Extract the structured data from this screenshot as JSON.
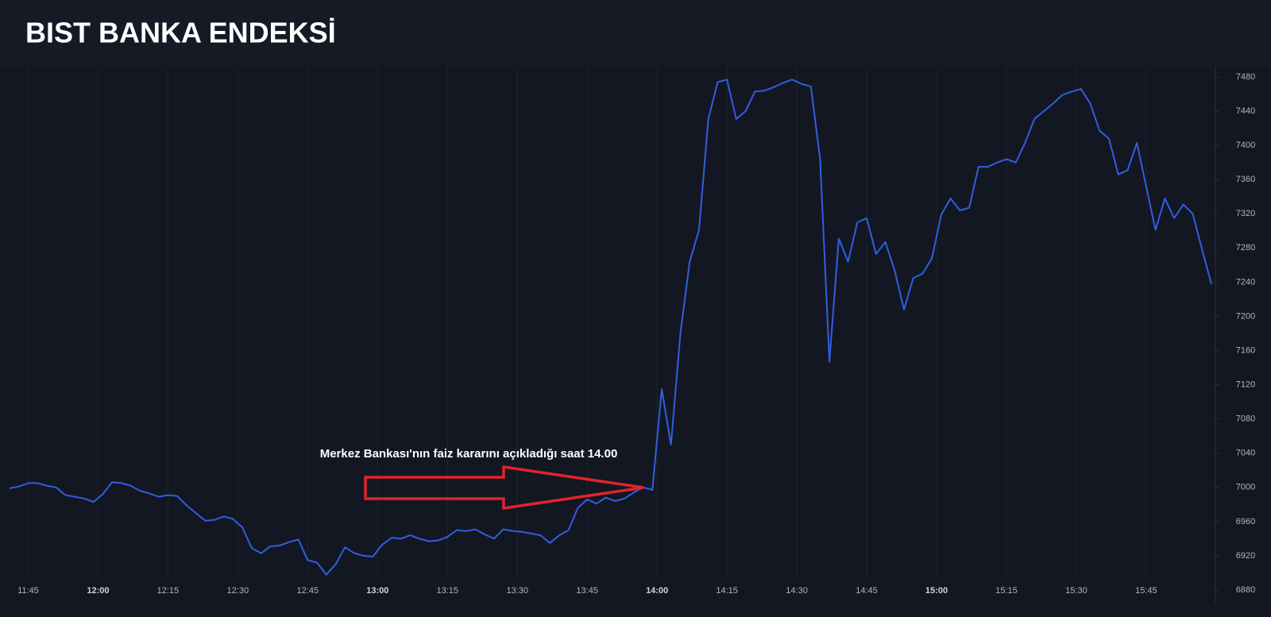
{
  "chart_data": {
    "type": "line",
    "title": "BIST BANKA ENDEKSİ",
    "annotation": "Merkez Bankası'nın faiz kararını açıkladığı saat 14.00",
    "x": [
      "11:41",
      "11:43",
      "11:45",
      "11:47",
      "11:49",
      "11:51",
      "11:53",
      "11:55",
      "11:57",
      "11:59",
      "12:01",
      "12:03",
      "12:05",
      "12:07",
      "12:09",
      "12:11",
      "12:13",
      "12:15",
      "12:17",
      "12:19",
      "12:21",
      "12:23",
      "12:25",
      "12:27",
      "12:29",
      "12:31",
      "12:33",
      "12:35",
      "12:37",
      "12:39",
      "12:41",
      "12:43",
      "12:45",
      "12:47",
      "12:49",
      "12:51",
      "12:53",
      "12:55",
      "12:57",
      "12:59",
      "13:01",
      "13:03",
      "13:05",
      "13:07",
      "13:09",
      "13:11",
      "13:13",
      "13:15",
      "13:17",
      "13:19",
      "13:21",
      "13:23",
      "13:25",
      "13:27",
      "13:29",
      "13:31",
      "13:33",
      "13:35",
      "13:37",
      "13:39",
      "13:41",
      "13:43",
      "13:45",
      "13:47",
      "13:49",
      "13:51",
      "13:53",
      "13:55",
      "13:57",
      "13:59",
      "14:01",
      "14:03",
      "14:05",
      "14:07",
      "14:09",
      "14:11",
      "14:13",
      "14:15",
      "14:17",
      "14:19",
      "14:21",
      "14:23",
      "14:25",
      "14:27",
      "14:29",
      "14:31",
      "14:33",
      "14:35",
      "14:37",
      "14:39",
      "14:41",
      "14:43",
      "14:45",
      "14:47",
      "14:49",
      "14:51",
      "14:53",
      "14:55",
      "14:57",
      "14:59",
      "15:01",
      "15:03",
      "15:05",
      "15:07",
      "15:09",
      "15:11",
      "15:13",
      "15:15",
      "15:17",
      "15:19",
      "15:21",
      "15:23",
      "15:25",
      "15:27",
      "15:29",
      "15:31",
      "15:33",
      "15:35",
      "15:37",
      "15:39",
      "15:41",
      "15:43",
      "15:45",
      "15:47",
      "15:49",
      "15:51",
      "15:53",
      "15:55",
      "15:57",
      "15:59"
    ],
    "series": [
      {
        "color": "#2f5fe0",
        "values": [
          6999,
          7001,
          7005,
          7005,
          7002,
          7000,
          6991,
          6989,
          6987,
          6983,
          6992,
          7006,
          7005,
          7002,
          6996,
          6993,
          6989,
          6991,
          6990,
          6979,
          6970,
          6961,
          6962,
          6966,
          6963,
          6953,
          6929,
          6923,
          6931,
          6932,
          6936,
          6939,
          6915,
          6912,
          6898,
          6910,
          6930,
          6923,
          6920,
          6919,
          6933,
          6941,
          6940,
          6944,
          6940,
          6937,
          6938,
          6942,
          6950,
          6949,
          6951,
          6945,
          6940,
          6951,
          6949,
          6948,
          6946,
          6944,
          6935,
          6944,
          6950,
          6976,
          6986,
          6981,
          6988,
          6984,
          6987,
          6994,
          7000,
          6997,
          7115,
          7050,
          7180,
          7264,
          7301,
          7431,
          7474,
          7477,
          7431,
          7440,
          7463,
          7464,
          7468,
          7473,
          7477,
          7472,
          7469,
          7384,
          7147,
          7291,
          7264,
          7310,
          7315,
          7273,
          7287,
          7254,
          7208,
          7245,
          7250,
          7268,
          7319,
          7338,
          7324,
          7327,
          7375,
          7375,
          7380,
          7384,
          7380,
          7403,
          7431,
          7440,
          7449,
          7459,
          7463,
          7466,
          7449,
          7417,
          7408,
          7366,
          7371,
          7403,
          7352,
          7301,
          7338,
          7315,
          7331,
          7320,
          7278,
          7238
        ]
      }
    ],
    "xlim": [
      "11:41",
      "15:59"
    ],
    "xticks": [
      "11:45",
      "12:00",
      "12:15",
      "12:30",
      "12:45",
      "13:00",
      "13:15",
      "13:30",
      "13:45",
      "14:00",
      "14:15",
      "14:30",
      "14:45",
      "15:00",
      "15:15",
      "15:30",
      "15:45"
    ],
    "ylim": [
      6880,
      7480
    ],
    "yticks": [
      6880,
      6920,
      6960,
      7000,
      7040,
      7080,
      7120,
      7160,
      7200,
      7240,
      7280,
      7320,
      7360,
      7400,
      7440,
      7480
    ],
    "grid": true
  }
}
